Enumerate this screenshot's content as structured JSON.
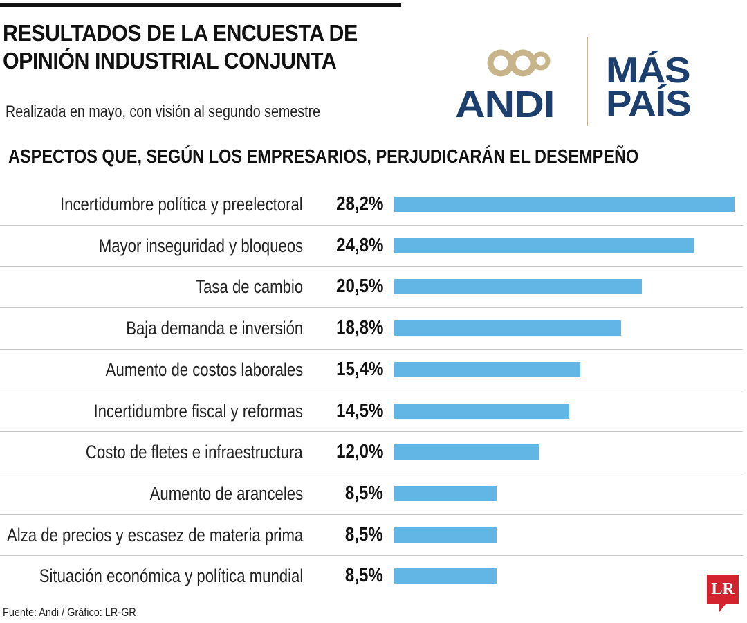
{
  "header": {
    "title_line1": "RESULTADOS DE LA ENCUESTA DE",
    "title_line2": "OPINIÓN INDUSTRIAL CONJUNTA",
    "subtitle": "Realizada en mayo, con visión al segundo semestre",
    "section_title": "ASPECTOS QUE, SEGÚN LOS EMPRESARIOS, PERJUDICARÁN EL DESEMPEÑO"
  },
  "logo": {
    "left_text": "ANDI",
    "right_line1": "MÁS",
    "right_line2": "PAÍS",
    "navy": "#1c3f6e",
    "gold": "#c8b48a"
  },
  "footer": {
    "source": "Fuente: Andi / Gráfico: LR-GR",
    "badge": "LR",
    "badge_color": "#d3232f"
  },
  "colors": {
    "bar": "#62b6e5",
    "separator": "#c9c9c9",
    "text": "#111111"
  },
  "chart_data": {
    "type": "bar",
    "orientation": "horizontal",
    "title": "ASPECTOS QUE, SEGÚN LOS EMPRESARIOS, PERJUDICARÁN EL DESEMPEÑO",
    "categories": [
      "Incertidumbre política y preelectoral",
      "Mayor inseguridad y bloqueos",
      "Tasa de cambio",
      "Baja demanda e inversión",
      "Aumento de costos laborales",
      "Incertidumbre fiscal y reformas",
      "Costo de fletes e infraestructura",
      "Aumento de aranceles",
      "Alza de precios y escasez de materia prima",
      "Situación económica y política mundial"
    ],
    "values": [
      28.2,
      24.8,
      20.5,
      18.8,
      15.4,
      14.5,
      12.0,
      8.5,
      8.5,
      8.5
    ],
    "value_labels": [
      "28,2%",
      "24,8%",
      "20,5%",
      "18,8%",
      "15,4%",
      "14,5%",
      "12,0%",
      "8,5%",
      "8,5%",
      "8,5%"
    ],
    "xlim": [
      0,
      28.2
    ],
    "grid": false,
    "legend": "none"
  }
}
